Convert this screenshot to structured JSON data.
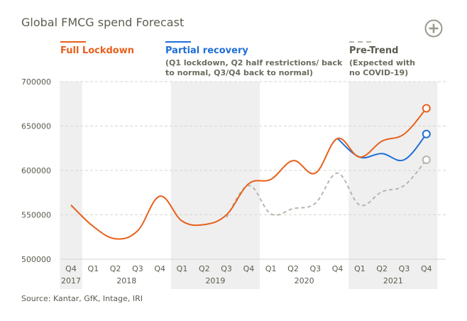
{
  "chart_data": {
    "type": "line",
    "title": "Global FMCG spend Forecast",
    "source": "Source: Kantar, GfK, Intage, IRI",
    "ylim": [
      500000,
      700000
    ],
    "yticks": [
      "700000",
      "650000",
      "600000",
      "550000",
      "500000"
    ],
    "ytick_values": [
      700000,
      650000,
      600000,
      550000,
      500000
    ],
    "quarters": [
      "Q4",
      "Q1",
      "Q2",
      "Q3",
      "Q4",
      "Q1",
      "Q2",
      "Q3",
      "Q4",
      "Q1",
      "Q2",
      "Q3",
      "Q4",
      "Q1",
      "Q2",
      "Q3",
      "Q4"
    ],
    "years": [
      {
        "label": "2017",
        "from": 0,
        "to": 0,
        "shaded": true
      },
      {
        "label": "2018",
        "from": 1,
        "to": 4,
        "shaded": false
      },
      {
        "label": "2019",
        "from": 5,
        "to": 8,
        "shaded": true
      },
      {
        "label": "2020",
        "from": 9,
        "to": 12,
        "shaded": false
      },
      {
        "label": "2021",
        "from": 13,
        "to": 16,
        "shaded": true
      }
    ],
    "series": [
      {
        "name": "Pre-Trend",
        "description": [
          "(Expected with",
          "no COVID-19)"
        ],
        "color": "#b5b5ad",
        "dashed": true,
        "start_index": 7,
        "values": [
          547000,
          583000,
          551000,
          557000,
          563000,
          597000,
          561000,
          576000,
          583000,
          612000
        ]
      },
      {
        "name": "Partial recovery",
        "description": [
          "(Q1 lockdown, Q2 half restrictions/ back",
          "to normal, Q3/Q4 back to normal)"
        ],
        "color": "#1f6fd6",
        "dashed": false,
        "start_index": 12,
        "values": [
          636000,
          615000,
          619000,
          612000,
          641000
        ]
      },
      {
        "name": "Full Lockdown",
        "description": [],
        "color": "#e8601d",
        "dashed": false,
        "start_index": 0,
        "values": [
          561000,
          537000,
          523000,
          532000,
          571000,
          543000,
          539000,
          550000,
          585000,
          590000,
          611000,
          597000,
          636000,
          615000,
          633000,
          641000,
          670000
        ]
      }
    ]
  }
}
